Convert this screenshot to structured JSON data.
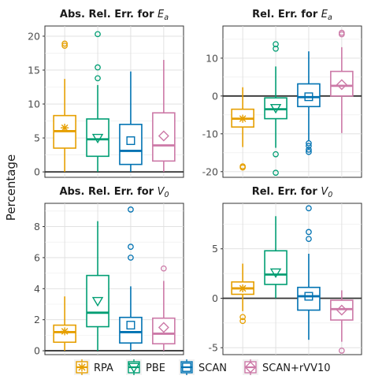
{
  "figure": {
    "ylabel": "Percentage",
    "colors": {
      "RPA": "#E69F00",
      "PBE": "#009E73",
      "SCAN": "#0072B2",
      "SCAN+rVV10": "#CC79A7"
    },
    "legend": [
      {
        "label": "RPA",
        "marker": "asterisk"
      },
      {
        "label": "PBE",
        "marker": "triangle-down"
      },
      {
        "label": "SCAN",
        "marker": "square"
      },
      {
        "label": "SCAN+rVV10",
        "marker": "diamond"
      }
    ]
  },
  "chart_data": [
    {
      "type": "box",
      "title_prefix": "Abs. Rel. Err. for ",
      "title_symbol": "E",
      "title_sub": "a",
      "ylim": [
        -0.8,
        21.5
      ],
      "yticks": [
        0,
        5,
        10,
        15,
        20
      ],
      "zero_line": 0,
      "grid": true,
      "boxes": [
        {
          "name": "RPA",
          "whisker_low": 0.0,
          "q1": 3.5,
          "median": 6.0,
          "q3": 8.3,
          "whisker_high": 13.7,
          "mean": 6.5,
          "outliers": [
            18.6,
            18.9
          ]
        },
        {
          "name": "PBE",
          "whisker_low": 0.0,
          "q1": 2.3,
          "median": 4.8,
          "q3": 7.8,
          "whisker_high": 12.8,
          "mean": 5.0,
          "outliers": [
            13.8,
            15.4,
            20.3
          ]
        },
        {
          "name": "SCAN",
          "whisker_low": 0.0,
          "q1": 1.1,
          "median": 3.1,
          "q3": 7.0,
          "whisker_high": 14.8,
          "mean": 4.6,
          "outliers": []
        },
        {
          "name": "SCAN+rVV10",
          "whisker_low": 0.0,
          "q1": 1.6,
          "median": 3.9,
          "q3": 8.7,
          "whisker_high": 16.5,
          "mean": 5.3,
          "outliers": []
        }
      ]
    },
    {
      "type": "box",
      "title_prefix": "Rel. Err. for ",
      "title_symbol": "E",
      "title_sub": "a",
      "ylim": [
        -21.5,
        18.5
      ],
      "yticks": [
        -20,
        -10,
        0,
        10
      ],
      "zero_line": 0,
      "grid": true,
      "boxes": [
        {
          "name": "RPA",
          "whisker_low": -13.5,
          "q1": -8.2,
          "median": -6.0,
          "q3": -3.5,
          "whisker_high": 2.3,
          "mean": -6.0,
          "outliers": [
            -18.6,
            -18.9
          ]
        },
        {
          "name": "PBE",
          "whisker_low": -13.7,
          "q1": -6.0,
          "median": -3.5,
          "q3": -0.5,
          "whisker_high": 7.8,
          "mean": -3.2,
          "outliers": [
            -15.4,
            -20.3,
            12.5,
            13.7
          ]
        },
        {
          "name": "SCAN",
          "whisker_low": -11.8,
          "q1": -2.8,
          "median": -0.3,
          "q3": 3.2,
          "whisker_high": 11.8,
          "mean": -0.2,
          "outliers": [
            -12.5,
            -13.2,
            -14.2,
            -14.8
          ]
        },
        {
          "name": "SCAN+rVV10",
          "whisker_low": -9.8,
          "q1": 0.0,
          "median": 2.7,
          "q3": 6.5,
          "whisker_high": 12.9,
          "mean": 3.0,
          "outliers": [
            16.3,
            16.7
          ]
        }
      ]
    },
    {
      "type": "box",
      "title_prefix": "Abs. Rel. Err. for ",
      "title_symbol": "V",
      "title_sub": "0",
      "ylim": [
        -0.25,
        9.5
      ],
      "yticks": [
        0,
        2,
        4,
        6,
        8
      ],
      "zero_line": 0,
      "grid": true,
      "boxes": [
        {
          "name": "RPA",
          "whisker_low": 0.0,
          "q1": 0.55,
          "median": 1.2,
          "q3": 1.65,
          "whisker_high": 3.5,
          "mean": 1.25,
          "outliers": []
        },
        {
          "name": "PBE",
          "whisker_low": 0.0,
          "q1": 1.55,
          "median": 2.45,
          "q3": 4.85,
          "whisker_high": 8.35,
          "mean": 3.2,
          "outliers": []
        },
        {
          "name": "SCAN",
          "whisker_low": 0.0,
          "q1": 0.5,
          "median": 1.2,
          "q3": 2.15,
          "whisker_high": 4.15,
          "mean": 1.65,
          "outliers": [
            6.0,
            6.7,
            9.1
          ]
        },
        {
          "name": "SCAN+rVV10",
          "whisker_low": 0.0,
          "q1": 0.45,
          "median": 1.1,
          "q3": 2.1,
          "whisker_high": 4.5,
          "mean": 1.5,
          "outliers": [
            5.3
          ]
        }
      ]
    },
    {
      "type": "box",
      "title_prefix": "Rel. Err. for ",
      "title_symbol": "V",
      "title_sub": "0",
      "ylim": [
        -5.7,
        9.6
      ],
      "yticks": [
        -5,
        0,
        5
      ],
      "zero_line": 0,
      "grid": true,
      "boxes": [
        {
          "name": "RPA",
          "whisker_low": -1.3,
          "q1": 0.4,
          "median": 1.0,
          "q3": 1.65,
          "whisker_high": 3.5,
          "mean": 1.0,
          "outliers": [
            -1.9,
            -2.3
          ]
        },
        {
          "name": "PBE",
          "whisker_low": 0.0,
          "q1": 1.4,
          "median": 2.4,
          "q3": 4.8,
          "whisker_high": 8.3,
          "mean": 2.6,
          "outliers": []
        },
        {
          "name": "SCAN",
          "whisker_low": -4.2,
          "q1": -1.2,
          "median": 0.2,
          "q3": 1.1,
          "whisker_high": 4.5,
          "mean": 0.2,
          "outliers": [
            6.0,
            6.7,
            9.1
          ]
        },
        {
          "name": "SCAN+rVV10",
          "whisker_low": -4.4,
          "q1": -2.2,
          "median": -1.1,
          "q3": -0.2,
          "whisker_high": 0.8,
          "mean": -1.2,
          "outliers": [
            -5.3
          ]
        }
      ]
    }
  ]
}
